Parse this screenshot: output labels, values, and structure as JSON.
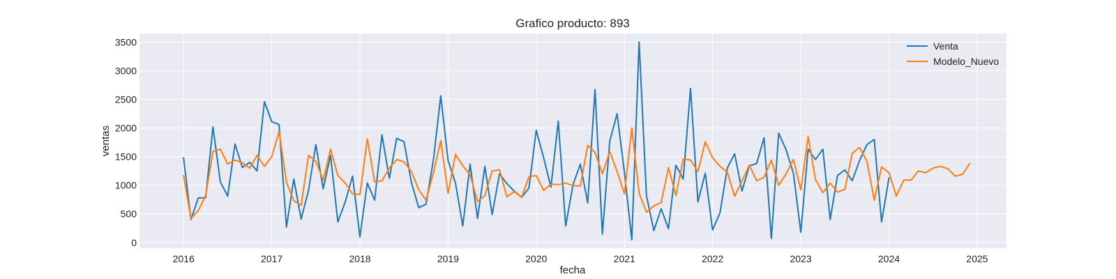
{
  "chart_data": {
    "type": "line",
    "title": "Grafico producto: 893",
    "xlabel": "fecha",
    "ylabel": "ventas",
    "x_range": [
      "2015-07",
      "2025-05"
    ],
    "ylim": [
      -100,
      3650
    ],
    "x_ticks": [
      "2016",
      "2017",
      "2018",
      "2019",
      "2020",
      "2021",
      "2022",
      "2023",
      "2024",
      "2025"
    ],
    "y_ticks": [
      0,
      500,
      1000,
      1500,
      2000,
      2500,
      3000,
      3500
    ],
    "grid": true,
    "legend": "top-right",
    "background": "#eaeaf2",
    "series": [
      {
        "name": "Venta",
        "color": "#1f77b4",
        "start": "2016-01",
        "values": [
          1480,
          400,
          780,
          780,
          2020,
          1060,
          810,
          1720,
          1310,
          1400,
          1250,
          2460,
          2110,
          2060,
          270,
          1110,
          410,
          910,
          1710,
          940,
          1520,
          360,
          710,
          1160,
          100,
          1040,
          740,
          1880,
          1120,
          1820,
          1760,
          1050,
          610,
          670,
          1450,
          2560,
          1430,
          1040,
          290,
          1370,
          420,
          1330,
          490,
          1200,
          1030,
          900,
          790,
          950,
          1960,
          1480,
          970,
          2120,
          290,
          1010,
          1370,
          690,
          2670,
          150,
          1770,
          2250,
          1230,
          50,
          3500,
          820,
          210,
          590,
          240,
          1350,
          1110,
          2690,
          710,
          1210,
          220,
          520,
          1300,
          1550,
          900,
          1340,
          1380,
          1830,
          70,
          1910,
          1620,
          1210,
          180,
          1630,
          1450,
          1630,
          400,
          1170,
          1270,
          1080,
          1430,
          1710,
          1800,
          360,
          1130
        ]
      },
      {
        "name": "Modelo_Nuevo",
        "color": "#ff7f0e",
        "start": "2016-01",
        "values": [
          1170,
          420,
          560,
          820,
          1590,
          1630,
          1370,
          1440,
          1390,
          1300,
          1520,
          1330,
          1500,
          1940,
          1050,
          730,
          650,
          1520,
          1420,
          1090,
          1630,
          1170,
          1040,
          850,
          840,
          1810,
          1060,
          1080,
          1300,
          1450,
          1410,
          1240,
          920,
          740,
          1220,
          1780,
          860,
          1540,
          1340,
          1180,
          720,
          820,
          1250,
          1270,
          800,
          890,
          790,
          1150,
          1170,
          910,
          1020,
          1010,
          1040,
          990,
          990,
          1700,
          1570,
          1200,
          1590,
          1240,
          850,
          2000,
          860,
          530,
          640,
          700,
          1310,
          820,
          1460,
          1440,
          1240,
          1760,
          1480,
          1330,
          1230,
          810,
          1080,
          1350,
          1080,
          1140,
          1440,
          1000,
          1200,
          1450,
          920,
          1850,
          1100,
          870,
          1040,
          880,
          930,
          1560,
          1660,
          1420,
          740,
          1320,
          1220,
          810,
          1090,
          1090,
          1250,
          1220,
          1300,
          1330,
          1290,
          1160,
          1190,
          1380
        ]
      }
    ]
  }
}
